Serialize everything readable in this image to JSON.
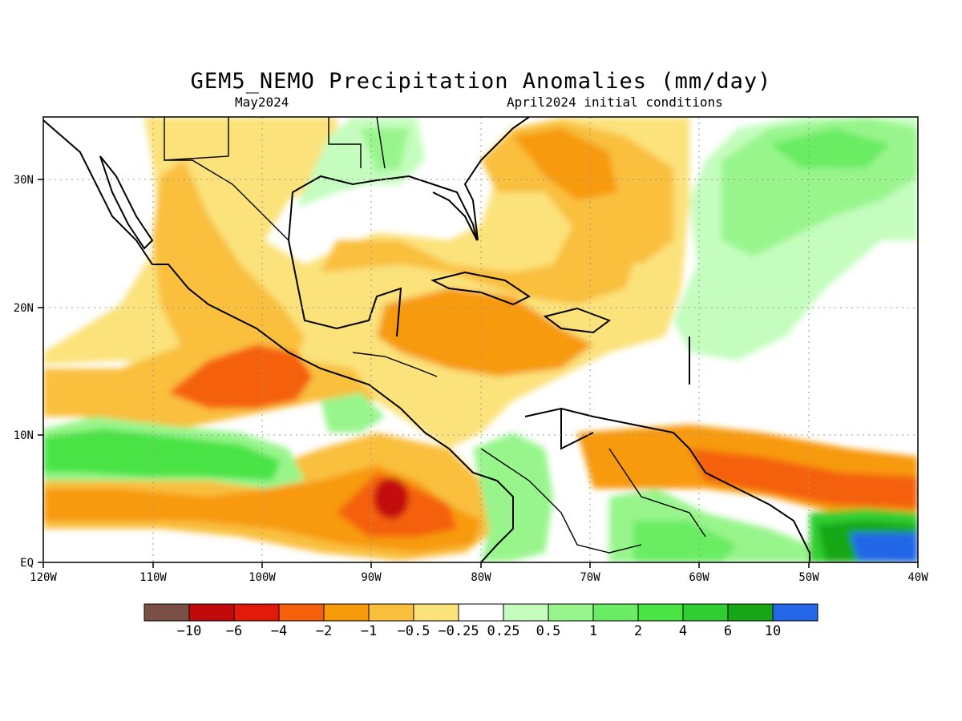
{
  "title": "GEM5_NEMO Precipitation Anomalies (mm/day)",
  "subtitle_left": "May2024",
  "subtitle_right": "April2024 initial conditions",
  "map": {
    "lon_range": [
      -120,
      -40
    ],
    "lat_range": [
      0,
      35
    ],
    "x_ticks": [
      "120W",
      "110W",
      "100W",
      "90W",
      "80W",
      "70W",
      "60W",
      "50W",
      "40W"
    ],
    "y_ticks": [
      "EQ",
      "10N",
      "20N",
      "30N"
    ]
  },
  "colorbar": {
    "labels": [
      "−10",
      "−6",
      "−4",
      "−2",
      "−1",
      "−0.5",
      "−0.25",
      "0.25",
      "0.5",
      "1",
      "2",
      "4",
      "6",
      "10"
    ],
    "colors": [
      "#7a4f45",
      "#c30a0a",
      "#e21a0a",
      "#f5600a",
      "#f79a0a",
      "#f9bf3d",
      "#fbe27a",
      "#ffffff",
      "#c4fdbe",
      "#98f58c",
      "#6aec64",
      "#49e344",
      "#30ce33",
      "#17a716",
      "#2466e8"
    ]
  }
}
